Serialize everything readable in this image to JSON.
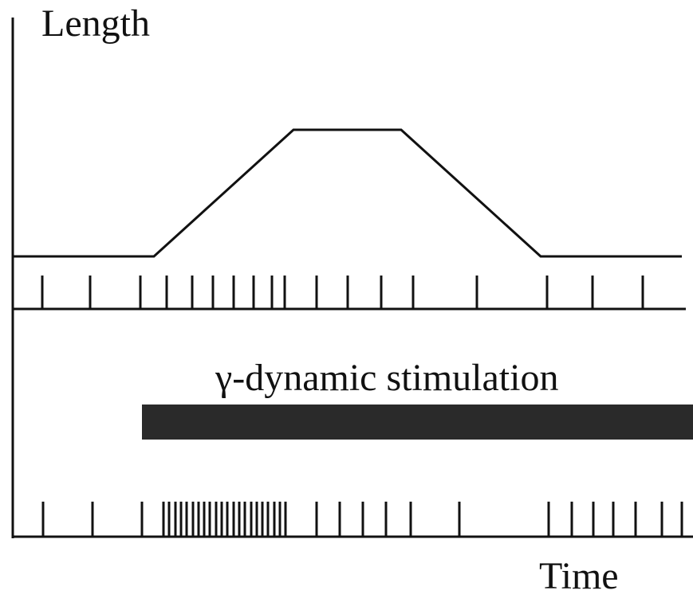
{
  "labels": {
    "y_axis": "Length",
    "stimulation": "γ-dynamic stimulation",
    "x_axis": "Time"
  },
  "colors": {
    "ink": "#111111",
    "stim_bar": "#2a2a2a",
    "background": "#ffffff"
  }
}
